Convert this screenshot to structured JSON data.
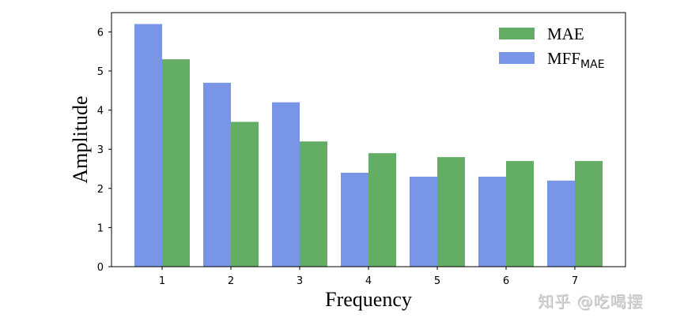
{
  "chart_data": {
    "type": "bar",
    "title": "",
    "xlabel": "Frequency",
    "ylabel": "Amplitude",
    "categories": [
      "1",
      "2",
      "3",
      "4",
      "5",
      "6",
      "7"
    ],
    "series": [
      {
        "name": "MFF_MAE",
        "legend_main": "MFF",
        "legend_sub": "MAE",
        "color": "#7895e6",
        "values": [
          6.2,
          4.7,
          4.2,
          2.4,
          2.3,
          2.3,
          2.2
        ]
      },
      {
        "name": "MAE",
        "legend_main": "MAE",
        "legend_sub": "",
        "color": "#64ad64",
        "values": [
          5.3,
          3.7,
          3.2,
          2.9,
          2.8,
          2.7,
          2.7
        ]
      }
    ],
    "yticks": [
      "0",
      "1",
      "2",
      "3",
      "4",
      "5",
      "6"
    ],
    "ylim": [
      0,
      6.5
    ],
    "grid": false,
    "legend_position": "upper right"
  },
  "watermark": "知乎 @吃喝摆"
}
